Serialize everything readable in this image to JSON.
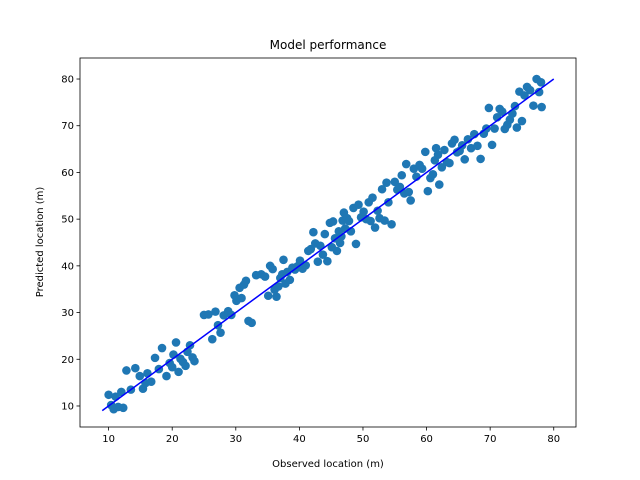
{
  "chart_data": {
    "type": "scatter",
    "title": "Model performance",
    "xlabel": "Observed location (m)",
    "ylabel": "Predicted location (m)",
    "xlim": [
      5.5,
      83.5
    ],
    "ylim": [
      5.5,
      84.5
    ],
    "xticks": [
      10,
      20,
      30,
      40,
      50,
      60,
      70,
      80
    ],
    "yticks": [
      10,
      20,
      30,
      40,
      50,
      60,
      70,
      80
    ],
    "grid": false,
    "colors": {
      "points": "#1f77b4",
      "fit_line": "#0000ff"
    },
    "reference_line": {
      "x": [
        9,
        80
      ],
      "y": [
        9,
        80
      ]
    },
    "series": [
      {
        "points": [
          [
            10.0,
            12.4
          ],
          [
            10.4,
            10.2
          ],
          [
            10.8,
            9.3
          ],
          [
            11.1,
            12.0
          ],
          [
            11.5,
            9.8
          ],
          [
            12.0,
            13.0
          ],
          [
            12.3,
            9.6
          ],
          [
            12.8,
            17.6
          ],
          [
            13.5,
            13.5
          ],
          [
            14.2,
            18.1
          ],
          [
            14.9,
            16.4
          ],
          [
            15.4,
            13.7
          ],
          [
            15.8,
            14.9
          ],
          [
            16.1,
            17.0
          ],
          [
            16.7,
            15.2
          ],
          [
            17.3,
            20.3
          ],
          [
            17.9,
            17.9
          ],
          [
            18.4,
            22.4
          ],
          [
            19.1,
            16.4
          ],
          [
            19.6,
            19.2
          ],
          [
            20.0,
            18.3
          ],
          [
            20.2,
            21.0
          ],
          [
            20.6,
            23.6
          ],
          [
            21.0,
            17.3
          ],
          [
            21.3,
            20.1
          ],
          [
            21.7,
            19.4
          ],
          [
            22.1,
            18.6
          ],
          [
            22.4,
            21.6
          ],
          [
            22.8,
            23.0
          ],
          [
            23.2,
            20.4
          ],
          [
            23.5,
            19.6
          ],
          [
            25.0,
            29.5
          ],
          [
            25.7,
            29.6
          ],
          [
            26.3,
            24.3
          ],
          [
            26.8,
            30.2
          ],
          [
            27.2,
            27.3
          ],
          [
            27.6,
            25.7
          ],
          [
            28.1,
            29.4
          ],
          [
            28.8,
            30.3
          ],
          [
            29.3,
            29.5
          ],
          [
            29.8,
            33.7
          ],
          [
            30.1,
            32.5
          ],
          [
            30.6,
            35.3
          ],
          [
            30.9,
            33.1
          ],
          [
            31.3,
            36.0
          ],
          [
            31.6,
            36.8
          ],
          [
            32.0,
            28.2
          ],
          [
            32.5,
            27.8
          ],
          [
            33.2,
            38.0
          ],
          [
            34.0,
            38.2
          ],
          [
            34.6,
            37.7
          ],
          [
            35.1,
            33.6
          ],
          [
            35.4,
            40.0
          ],
          [
            35.8,
            39.3
          ],
          [
            36.1,
            34.9
          ],
          [
            36.4,
            33.4
          ],
          [
            36.7,
            35.6
          ],
          [
            37.0,
            37.4
          ],
          [
            37.3,
            38.2
          ],
          [
            37.5,
            41.3
          ],
          [
            37.8,
            36.2
          ],
          [
            38.1,
            38.7
          ],
          [
            38.5,
            37.0
          ],
          [
            38.9,
            39.6
          ],
          [
            39.3,
            39.2
          ],
          [
            39.7,
            39.9
          ],
          [
            40.1,
            41.1
          ],
          [
            40.5,
            39.4
          ],
          [
            41.0,
            40.1
          ],
          [
            41.4,
            43.2
          ],
          [
            41.8,
            43.6
          ],
          [
            42.2,
            47.2
          ],
          [
            42.5,
            44.8
          ],
          [
            42.9,
            40.9
          ],
          [
            43.3,
            44.3
          ],
          [
            43.7,
            42.4
          ],
          [
            44.0,
            46.8
          ],
          [
            44.4,
            41.0
          ],
          [
            44.8,
            49.2
          ],
          [
            45.1,
            44.0
          ],
          [
            45.3,
            49.5
          ],
          [
            45.6,
            45.9
          ],
          [
            45.9,
            43.2
          ],
          [
            46.2,
            47.4
          ],
          [
            46.4,
            44.9
          ],
          [
            46.6,
            46.3
          ],
          [
            46.8,
            49.7
          ],
          [
            47.0,
            51.4
          ],
          [
            47.2,
            48.0
          ],
          [
            47.5,
            50.2
          ],
          [
            47.8,
            49.6
          ],
          [
            48.1,
            47.4
          ],
          [
            48.5,
            52.4
          ],
          [
            48.9,
            44.7
          ],
          [
            49.3,
            53.1
          ],
          [
            49.7,
            50.4
          ],
          [
            50.1,
            51.6
          ],
          [
            50.5,
            50.0
          ],
          [
            50.9,
            53.6
          ],
          [
            51.2,
            49.6
          ],
          [
            51.5,
            54.6
          ],
          [
            51.9,
            48.2
          ],
          [
            52.3,
            51.8
          ],
          [
            52.6,
            50.2
          ],
          [
            53.0,
            56.4
          ],
          [
            53.4,
            49.7
          ],
          [
            53.7,
            57.8
          ],
          [
            54.0,
            53.6
          ],
          [
            54.5,
            48.9
          ],
          [
            55.0,
            58.0
          ],
          [
            55.4,
            56.3
          ],
          [
            55.8,
            56.9
          ],
          [
            56.1,
            59.4
          ],
          [
            56.5,
            55.5
          ],
          [
            56.8,
            61.8
          ],
          [
            57.2,
            55.8
          ],
          [
            57.5,
            54.0
          ],
          [
            58.0,
            60.8
          ],
          [
            58.4,
            59.1
          ],
          [
            58.9,
            61.6
          ],
          [
            59.3,
            60.8
          ],
          [
            59.8,
            64.4
          ],
          [
            60.2,
            56.0
          ],
          [
            60.6,
            58.8
          ],
          [
            61.0,
            59.6
          ],
          [
            61.3,
            62.6
          ],
          [
            61.5,
            65.2
          ],
          [
            61.8,
            63.8
          ],
          [
            62.0,
            57.4
          ],
          [
            62.4,
            61.1
          ],
          [
            62.8,
            64.8
          ],
          [
            63.2,
            62.2
          ],
          [
            63.6,
            62.0
          ],
          [
            64.0,
            66.2
          ],
          [
            64.4,
            67.0
          ],
          [
            64.8,
            64.3
          ],
          [
            65.2,
            64.6
          ],
          [
            65.6,
            65.8
          ],
          [
            66.0,
            62.8
          ],
          [
            66.5,
            67.1
          ],
          [
            67.0,
            65.2
          ],
          [
            67.5,
            68.2
          ],
          [
            68.0,
            65.7
          ],
          [
            68.5,
            62.9
          ],
          [
            69.0,
            68.3
          ],
          [
            69.4,
            69.4
          ],
          [
            69.8,
            73.8
          ],
          [
            70.3,
            65.9
          ],
          [
            70.7,
            69.4
          ],
          [
            71.1,
            71.8
          ],
          [
            71.5,
            73.6
          ],
          [
            71.9,
            73.0
          ],
          [
            72.3,
            69.3
          ],
          [
            72.7,
            70.2
          ],
          [
            73.1,
            71.3
          ],
          [
            73.5,
            72.6
          ],
          [
            73.9,
            74.2
          ],
          [
            74.2,
            69.6
          ],
          [
            74.6,
            77.3
          ],
          [
            75.0,
            71.0
          ],
          [
            75.4,
            76.5
          ],
          [
            75.8,
            78.3
          ],
          [
            76.3,
            77.6
          ],
          [
            76.8,
            74.3
          ],
          [
            77.3,
            80.0
          ],
          [
            77.7,
            77.2
          ],
          [
            78.0,
            79.3
          ],
          [
            78.1,
            74.0
          ]
        ]
      }
    ]
  }
}
